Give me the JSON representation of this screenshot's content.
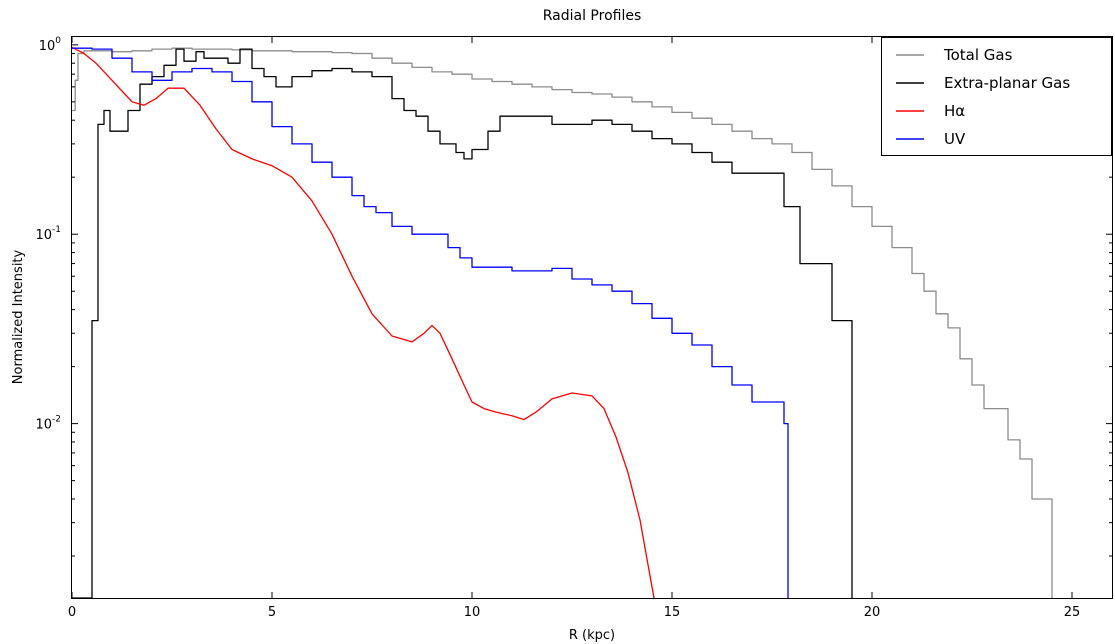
{
  "chart_data": {
    "type": "line",
    "title": "Radial Profiles",
    "xlabel": "R (kpc)",
    "ylabel": "Normalized Intensity",
    "xlim": [
      0,
      26
    ],
    "ylim": [
      0.0012,
      1.1
    ],
    "yscale": "log",
    "grid": false,
    "legend_position": "top-right",
    "x_ticks": [
      {
        "value": 0,
        "label": "0"
      },
      {
        "value": 5,
        "label": "5"
      },
      {
        "value": 10,
        "label": "10"
      },
      {
        "value": 15,
        "label": "15"
      },
      {
        "value": 20,
        "label": "20"
      },
      {
        "value": 25,
        "label": "25"
      }
    ],
    "y_ticks": [
      {
        "value": 1,
        "base": "10",
        "exp": "0"
      },
      {
        "value": 0.1,
        "base": "10",
        "exp": "-1"
      },
      {
        "value": 0.01,
        "base": "10",
        "exp": "-2"
      }
    ],
    "series": [
      {
        "name": "Total Gas",
        "color": "#8c8c8c",
        "step": true,
        "x": [
          0,
          0.08,
          0.15,
          0.3,
          0.6,
          1.0,
          1.5,
          2.0,
          2.5,
          3.0,
          3.5,
          4.0,
          4.5,
          5.0,
          5.5,
          6.0,
          6.5,
          7.0,
          7.5,
          8.0,
          8.5,
          9.0,
          9.5,
          10.0,
          10.5,
          11.0,
          11.5,
          12.0,
          12.5,
          13.0,
          13.5,
          14.0,
          14.5,
          15.0,
          15.5,
          16.0,
          16.5,
          17.0,
          17.5,
          18.0,
          18.5,
          19.0,
          19.5,
          20.0,
          20.5,
          21.0,
          21.3,
          21.6,
          21.9,
          22.2,
          22.5,
          22.8,
          23.1,
          23.4,
          23.7,
          24.0,
          24.3,
          24.5
        ],
        "y": [
          0.45,
          0.65,
          0.9,
          0.93,
          0.93,
          0.92,
          0.93,
          0.95,
          0.96,
          0.95,
          0.95,
          0.94,
          0.93,
          0.93,
          0.92,
          0.92,
          0.91,
          0.9,
          0.85,
          0.8,
          0.76,
          0.72,
          0.7,
          0.66,
          0.64,
          0.62,
          0.6,
          0.58,
          0.56,
          0.55,
          0.53,
          0.5,
          0.47,
          0.44,
          0.41,
          0.38,
          0.35,
          0.32,
          0.3,
          0.27,
          0.22,
          0.18,
          0.14,
          0.11,
          0.085,
          0.062,
          0.05,
          0.038,
          0.032,
          0.022,
          0.016,
          0.012,
          0.012,
          0.0082,
          0.0065,
          0.004,
          0.004,
          0.0012
        ]
      },
      {
        "name": "Extra-planar Gas",
        "color": "#000000",
        "step": true,
        "x": [
          0,
          0.5,
          0.65,
          0.8,
          0.95,
          1.1,
          1.4,
          1.7,
          2.0,
          2.3,
          2.6,
          2.8,
          3.1,
          3.3,
          3.6,
          3.9,
          4.2,
          4.5,
          4.8,
          5.1,
          5.5,
          6.0,
          6.5,
          7.0,
          7.5,
          8.0,
          8.3,
          8.6,
          8.9,
          9.2,
          9.6,
          9.8,
          10.0,
          10.4,
          10.7,
          11.0,
          11.5,
          12.0,
          12.5,
          13.0,
          13.5,
          14.0,
          14.5,
          15.0,
          15.5,
          16.0,
          16.5,
          17.0,
          17.5,
          17.8,
          18.2,
          18.5,
          18.8,
          19.0,
          19.5
        ],
        "y": [
          0.0012,
          0.035,
          0.38,
          0.45,
          0.35,
          0.35,
          0.45,
          0.62,
          0.68,
          0.78,
          0.95,
          0.82,
          0.92,
          0.85,
          0.85,
          0.8,
          0.95,
          0.75,
          0.68,
          0.6,
          0.68,
          0.73,
          0.75,
          0.72,
          0.68,
          0.52,
          0.45,
          0.42,
          0.35,
          0.3,
          0.27,
          0.25,
          0.28,
          0.35,
          0.42,
          0.42,
          0.42,
          0.38,
          0.38,
          0.4,
          0.38,
          0.35,
          0.32,
          0.3,
          0.27,
          0.24,
          0.21,
          0.21,
          0.21,
          0.14,
          0.07,
          0.07,
          0.07,
          0.035,
          0.0012
        ]
      },
      {
        "name": "Hα",
        "color": "#ff0000",
        "step": false,
        "x": [
          0,
          0.3,
          0.6,
          1.0,
          1.5,
          1.8,
          2.1,
          2.4,
          2.8,
          3.2,
          3.6,
          4.0,
          4.5,
          5.0,
          5.5,
          6.0,
          6.5,
          7.0,
          7.5,
          8.0,
          8.5,
          8.8,
          9.0,
          9.2,
          9.5,
          9.8,
          10.0,
          10.3,
          10.6,
          11.0,
          11.3,
          11.6,
          12.0,
          12.5,
          13.0,
          13.3,
          13.6,
          13.9,
          14.2,
          14.4,
          14.55
        ],
        "y": [
          0.97,
          0.9,
          0.8,
          0.65,
          0.5,
          0.48,
          0.52,
          0.59,
          0.59,
          0.48,
          0.36,
          0.28,
          0.25,
          0.23,
          0.2,
          0.15,
          0.1,
          0.06,
          0.038,
          0.029,
          0.027,
          0.03,
          0.033,
          0.03,
          0.022,
          0.016,
          0.013,
          0.012,
          0.0115,
          0.011,
          0.0105,
          0.0115,
          0.0135,
          0.0145,
          0.014,
          0.012,
          0.0085,
          0.0055,
          0.0031,
          0.0018,
          0.0012
        ]
      },
      {
        "name": "UV",
        "color": "#0000ff",
        "step": true,
        "x": [
          0,
          0.5,
          1.0,
          1.5,
          2.0,
          2.5,
          3.0,
          3.5,
          4.0,
          4.5,
          5.0,
          5.5,
          6.0,
          6.5,
          7.0,
          7.3,
          7.6,
          8.0,
          8.5,
          9.0,
          9.4,
          9.7,
          10.0,
          10.5,
          11.0,
          11.5,
          12.0,
          12.5,
          13.0,
          13.5,
          14.0,
          14.5,
          15.0,
          15.5,
          16.0,
          16.5,
          17.0,
          17.5,
          17.8,
          17.9
        ],
        "y": [
          0.96,
          0.95,
          0.85,
          0.72,
          0.65,
          0.72,
          0.75,
          0.72,
          0.64,
          0.5,
          0.37,
          0.3,
          0.24,
          0.2,
          0.16,
          0.14,
          0.13,
          0.11,
          0.1,
          0.1,
          0.085,
          0.075,
          0.067,
          0.067,
          0.064,
          0.064,
          0.066,
          0.058,
          0.054,
          0.05,
          0.043,
          0.036,
          0.03,
          0.026,
          0.02,
          0.016,
          0.013,
          0.013,
          0.01,
          0.0012
        ]
      }
    ]
  }
}
